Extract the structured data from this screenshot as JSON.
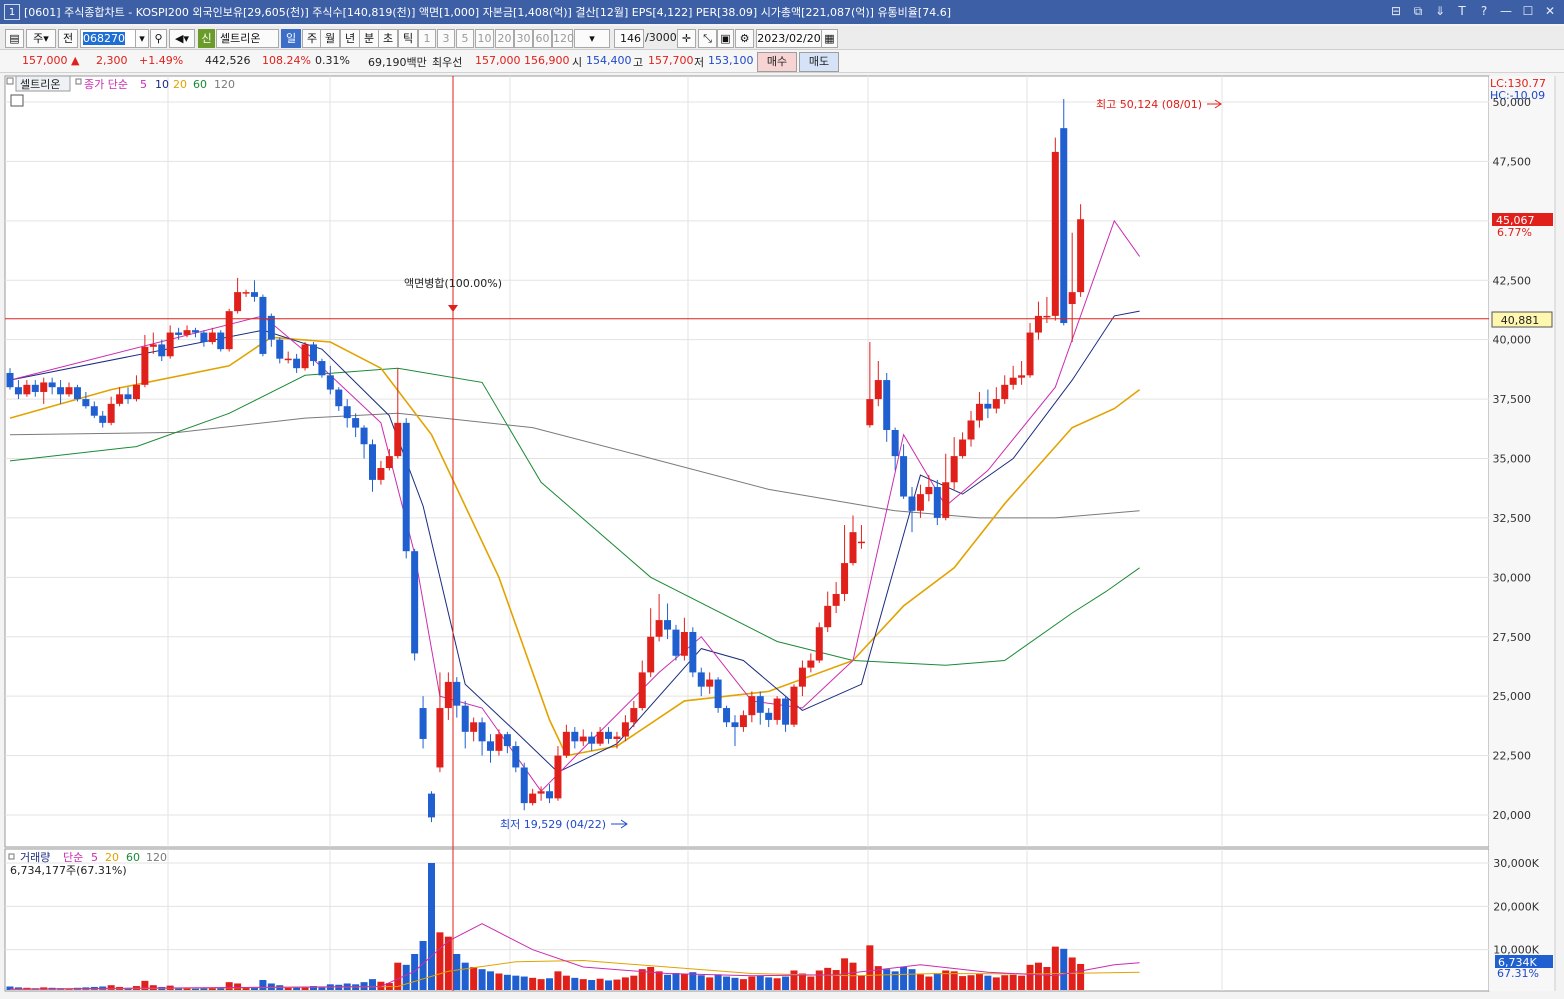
{
  "window": {
    "number": "1",
    "title": "[0601] 주식종합차트 - KOSPI200 외국인보유[29,605(천)] 주식수[140,819(천)] 액면[1,000] 자본금[1,408(억)] 결산[12월] EPS[4,122] PER[38.09] 시가총액[221,087(억)] 유통비율[74.6]",
    "buttons": [
      "⊟",
      "⧉",
      "⇓",
      "T",
      "?",
      "—",
      "☐",
      "✕"
    ]
  },
  "toolbar": {
    "market": "주",
    "prev": "전",
    "code": "068270",
    "stock_name": "셀트리온",
    "stock_badge": "신",
    "periods": [
      "일",
      "주",
      "월",
      "년",
      "분",
      "초",
      "틱"
    ],
    "selected_period": "일",
    "intervals": [
      "1",
      "3",
      "5",
      "10",
      "20",
      "30",
      "60",
      "120"
    ],
    "count": "146",
    "count_max": "/3000",
    "date": "2023/02/20"
  },
  "quote": {
    "price": "157,000",
    "arrow": "▲",
    "change": "2,300",
    "change_pct": "+1.49%",
    "volume": "442,526",
    "volume_ratio": "108.24%",
    "turnover": "0.31%",
    "amount": "69,190백만",
    "best_bid_label": "최우선",
    "best_ask": "157,000",
    "best_bid": "156,900",
    "open_label": "시",
    "open": "154,400",
    "high_label": "고",
    "high": "157,700",
    "low_label": "저",
    "low": "153,100",
    "buy_label": "매수",
    "sell_label": "매도"
  },
  "price_panel": {
    "name_tag": "셀트리온",
    "legend_title": "종가 단순",
    "ma_periods": [
      "5",
      "10",
      "20",
      "60",
      "120"
    ],
    "lc": "LC:130.77",
    "hc": "HC:-10.09",
    "y_ticks": [
      "50,000",
      "47,500",
      "45,000",
      "42,500",
      "40,000",
      "37,500",
      "35,000",
      "32,500",
      "30,000",
      "27,500",
      "25,000",
      "22,500",
      "20,000"
    ],
    "current_label": "45,067",
    "current_pct": "6.77%",
    "crosshair_label": "40,881",
    "max_annotation": "최고 50,124 (08/01)",
    "min_annotation": "최저 19,529 (04/22)",
    "event_annotation": "액면병합(100.00%)"
  },
  "volume_panel": {
    "legend_title": "거래량",
    "legend_sub": "단순",
    "ma_periods": [
      "5",
      "20",
      "60",
      "120"
    ],
    "current_text": "6,734,177주(67.31%)",
    "y_ticks": [
      "30,000K",
      "20,000K",
      "10,000K"
    ],
    "current_label": "6,734K",
    "current_pct": "67.31%"
  },
  "colors": {
    "up": "#e0201b",
    "down": "#1f5fcf",
    "ma5": "#cc2bb0",
    "ma10": "#1b2a80",
    "ma20": "#e2a300",
    "ma60": "#1a8a35",
    "ma120": "#7a7a7a"
  },
  "chart_data": {
    "type": "candlestick",
    "ylim": [
      19500,
      50500
    ],
    "volume_ylim": [
      0,
      31000
    ],
    "candles": [
      [
        38600,
        38000,
        38800,
        37900,
        1.5
      ],
      [
        38000,
        37700,
        38300,
        37500,
        1.3
      ],
      [
        37700,
        38100,
        38300,
        37600,
        1.2
      ],
      [
        38100,
        37800,
        38300,
        37600,
        1.1
      ],
      [
        37800,
        38200,
        38400,
        37300,
        1.3
      ],
      [
        38200,
        38000,
        38400,
        37700,
        1.2
      ],
      [
        38000,
        37700,
        38300,
        37300,
        1.1
      ],
      [
        37700,
        38000,
        38200,
        37600,
        1.0
      ],
      [
        38000,
        37500,
        38100,
        37400,
        1.2
      ],
      [
        37500,
        37200,
        37800,
        37100,
        1.3
      ],
      [
        37200,
        36800,
        37400,
        36700,
        1.4
      ],
      [
        36800,
        36500,
        37000,
        36300,
        1.5
      ],
      [
        36500,
        37300,
        37600,
        36400,
        1.8
      ],
      [
        37300,
        37700,
        38000,
        37200,
        1.4
      ],
      [
        37700,
        37500,
        38000,
        37300,
        1.2
      ],
      [
        37500,
        38100,
        38500,
        37400,
        1.6
      ],
      [
        38100,
        39700,
        40200,
        38000,
        2.8
      ],
      [
        39700,
        39800,
        40300,
        39400,
        1.8
      ],
      [
        39800,
        39300,
        40000,
        39100,
        1.4
      ],
      [
        39300,
        40300,
        40600,
        39200,
        1.7
      ],
      [
        40300,
        40200,
        40500,
        40000,
        1.2
      ],
      [
        40200,
        40400,
        40600,
        40100,
        1.1
      ],
      [
        40400,
        40300,
        40500,
        40100,
        1.0
      ],
      [
        40300,
        39900,
        40400,
        39700,
        1.2
      ],
      [
        39900,
        40300,
        40500,
        39800,
        1.1
      ],
      [
        40300,
        39600,
        40400,
        39500,
        1.3
      ],
      [
        39600,
        41200,
        41300,
        39500,
        2.5
      ],
      [
        41200,
        42000,
        42600,
        41100,
        2.2
      ],
      [
        42000,
        42000,
        42100,
        41800,
        1.3
      ],
      [
        42000,
        41800,
        42500,
        41600,
        1.4
      ],
      [
        41800,
        39400,
        41900,
        39300,
        3.0
      ],
      [
        41000,
        40000,
        41100,
        39700,
        2.2
      ],
      [
        40000,
        39200,
        40100,
        39000,
        1.8
      ],
      [
        39200,
        39200,
        39500,
        39000,
        1.2
      ],
      [
        39200,
        38800,
        39400,
        38600,
        1.3
      ],
      [
        38800,
        39800,
        39900,
        38700,
        1.5
      ],
      [
        39800,
        39100,
        39900,
        38900,
        1.6
      ],
      [
        39100,
        38500,
        39200,
        38400,
        1.4
      ],
      [
        38500,
        37900,
        38900,
        37700,
        2.0
      ],
      [
        37900,
        37200,
        38000,
        37000,
        1.9
      ],
      [
        37200,
        36700,
        37500,
        36300,
        2.2
      ],
      [
        36700,
        36300,
        36900,
        35900,
        2.0
      ],
      [
        36300,
        35600,
        36400,
        35000,
        2.5
      ],
      [
        35600,
        34100,
        35800,
        33600,
        3.2
      ],
      [
        34100,
        34600,
        34900,
        33900,
        2.6
      ],
      [
        34600,
        35100,
        35400,
        34500,
        2.3
      ],
      [
        35100,
        36500,
        38800,
        35000,
        7.0
      ],
      [
        36500,
        31100,
        36700,
        30800,
        6.5
      ],
      [
        31100,
        26800,
        31200,
        26500,
        9.0
      ],
      [
        24500,
        23200,
        25000,
        22800,
        12.0
      ],
      [
        20900,
        19900,
        21000,
        19700,
        30.0
      ],
      [
        22000,
        24500,
        26000,
        21800,
        14.0
      ],
      [
        24500,
        25600,
        26000,
        24000,
        13.0
      ],
      [
        25600,
        24600,
        25800,
        24100,
        9.0
      ],
      [
        24600,
        23500,
        24800,
        22800,
        7.0
      ],
      [
        23500,
        23900,
        24100,
        23100,
        6.0
      ],
      [
        23900,
        23100,
        24100,
        22500,
        5.5
      ],
      [
        23100,
        22700,
        23400,
        22200,
        5.0
      ],
      [
        22700,
        23400,
        23600,
        22500,
        4.5
      ],
      [
        23400,
        22900,
        23500,
        22600,
        4.2
      ],
      [
        22900,
        22000,
        23100,
        21800,
        4.0
      ],
      [
        22000,
        20500,
        22200,
        20200,
        3.8
      ],
      [
        20500,
        20900,
        21100,
        20400,
        3.5
      ],
      [
        20900,
        21000,
        21200,
        20600,
        3.2
      ],
      [
        21000,
        20700,
        21300,
        20500,
        3.4
      ],
      [
        20700,
        22500,
        22900,
        20600,
        5.0
      ],
      [
        22500,
        23500,
        23800,
        22400,
        4.0
      ],
      [
        23500,
        23100,
        23700,
        22800,
        3.5
      ],
      [
        23100,
        23300,
        23600,
        22900,
        3.2
      ],
      [
        23300,
        23000,
        23500,
        22700,
        3.0
      ],
      [
        23000,
        23500,
        23700,
        22900,
        3.3
      ],
      [
        23500,
        23200,
        23700,
        23000,
        2.9
      ],
      [
        23200,
        23300,
        23500,
        22800,
        3.1
      ],
      [
        23300,
        23900,
        24200,
        23100,
        3.6
      ],
      [
        23900,
        24500,
        24800,
        23700,
        4.0
      ],
      [
        24500,
        26000,
        26500,
        24400,
        5.5
      ],
      [
        26000,
        27500,
        28700,
        25800,
        6.0
      ],
      [
        27500,
        28200,
        29300,
        27300,
        5.0
      ],
      [
        28200,
        27800,
        28900,
        27400,
        4.2
      ],
      [
        27800,
        26700,
        28000,
        26500,
        4.6
      ],
      [
        26700,
        27700,
        28300,
        26500,
        4.4
      ],
      [
        27700,
        26000,
        27900,
        25800,
        4.8
      ],
      [
        26000,
        25400,
        26200,
        25000,
        4.1
      ],
      [
        25400,
        25700,
        26000,
        25100,
        3.6
      ],
      [
        25700,
        24500,
        25800,
        24300,
        4.3
      ],
      [
        24500,
        23900,
        24600,
        23700,
        3.8
      ],
      [
        23900,
        23700,
        24200,
        22900,
        3.5
      ],
      [
        23700,
        24200,
        24400,
        23500,
        3.2
      ],
      [
        24200,
        25000,
        25200,
        23900,
        3.8
      ],
      [
        25000,
        24300,
        25200,
        23800,
        4.0
      ],
      [
        24300,
        24000,
        24500,
        23700,
        3.6
      ],
      [
        24000,
        24900,
        25000,
        23800,
        3.4
      ],
      [
        24900,
        23800,
        25000,
        23500,
        3.8
      ],
      [
        23800,
        25400,
        25500,
        23700,
        5.2
      ],
      [
        25400,
        26200,
        26500,
        25000,
        4.5
      ],
      [
        26200,
        26500,
        26800,
        26000,
        3.8
      ],
      [
        26500,
        27900,
        28100,
        26400,
        5.2
      ],
      [
        27900,
        28800,
        29400,
        27700,
        5.8
      ],
      [
        28800,
        29300,
        29800,
        28500,
        5.3
      ],
      [
        29300,
        30600,
        32200,
        29000,
        8.0
      ],
      [
        30600,
        31900,
        32600,
        30500,
        7.0
      ],
      [
        31500,
        31500,
        32200,
        31200,
        4.0
      ],
      [
        36400,
        37500,
        39900,
        36300,
        11.0
      ],
      [
        37500,
        38300,
        39100,
        37200,
        6.2
      ],
      [
        38300,
        36200,
        38600,
        35700,
        5.5
      ],
      [
        36200,
        35100,
        36300,
        34500,
        5.0
      ],
      [
        35100,
        33400,
        35600,
        33300,
        6.0
      ],
      [
        33400,
        32800,
        33800,
        31900,
        5.5
      ],
      [
        32800,
        33500,
        33900,
        32500,
        4.3
      ],
      [
        33500,
        33800,
        34300,
        33200,
        3.8
      ],
      [
        33800,
        32500,
        34100,
        32200,
        4.6
      ],
      [
        32500,
        34000,
        35200,
        32400,
        5.2
      ],
      [
        34000,
        35100,
        35900,
        33700,
        5.0
      ],
      [
        35100,
        35800,
        36100,
        35000,
        3.9
      ],
      [
        35800,
        36600,
        37000,
        35500,
        4.1
      ],
      [
        36600,
        37300,
        37800,
        36300,
        4.4
      ],
      [
        37300,
        37100,
        37900,
        36700,
        4.0
      ],
      [
        37100,
        37500,
        38000,
        36900,
        3.6
      ],
      [
        37500,
        38100,
        38500,
        37300,
        4.1
      ],
      [
        38100,
        38400,
        38900,
        37900,
        4.2
      ],
      [
        38400,
        38500,
        39100,
        38100,
        4.0
      ],
      [
        38500,
        40300,
        40700,
        38400,
        6.5
      ],
      [
        40300,
        41000,
        41600,
        40000,
        7.0
      ],
      [
        41000,
        41000,
        41800,
        40700,
        6.0
      ],
      [
        41000,
        47900,
        48500,
        40800,
        10.7
      ],
      [
        48900,
        40700,
        50124,
        40600,
        10.2
      ],
      [
        41500,
        42000,
        44500,
        39900,
        8.2
      ],
      [
        42000,
        45067,
        45700,
        41800,
        6.7
      ]
    ],
    "moving_averages": {
      "ma5": [
        [
          0,
          38300
        ],
        [
          30,
          41000
        ],
        [
          35,
          39500
        ],
        [
          44,
          36500
        ],
        [
          48,
          31000
        ],
        [
          51,
          25000
        ],
        [
          56,
          24500
        ],
        [
          63,
          21000
        ],
        [
          68,
          22800
        ],
        [
          77,
          26000
        ],
        [
          82,
          27500
        ],
        [
          88,
          24800
        ],
        [
          94,
          24500
        ],
        [
          100,
          26500
        ],
        [
          106,
          36000
        ],
        [
          111,
          33000
        ],
        [
          116,
          34500
        ],
        [
          124,
          38000
        ],
        [
          131,
          45000
        ],
        [
          134,
          43500
        ]
      ],
      "ma10": [
        [
          0,
          38300
        ],
        [
          30,
          40400
        ],
        [
          37,
          39600
        ],
        [
          45,
          36800
        ],
        [
          49,
          33000
        ],
        [
          54,
          25500
        ],
        [
          60,
          23500
        ],
        [
          65,
          21800
        ],
        [
          72,
          23000
        ],
        [
          82,
          27000
        ],
        [
          87,
          26500
        ],
        [
          94,
          24400
        ],
        [
          101,
          25500
        ],
        [
          108,
          34300
        ],
        [
          113,
          33500
        ],
        [
          119,
          35000
        ],
        [
          126,
          38300
        ],
        [
          131,
          41000
        ],
        [
          134,
          41200
        ]
      ],
      "ma20": [
        [
          0,
          36700
        ],
        [
          12,
          37900
        ],
        [
          26,
          38900
        ],
        [
          31,
          40100
        ],
        [
          38,
          39900
        ],
        [
          44,
          38800
        ],
        [
          50,
          36000
        ],
        [
          58,
          30000
        ],
        [
          64,
          24000
        ],
        [
          66,
          22500
        ],
        [
          72,
          22900
        ],
        [
          80,
          24800
        ],
        [
          90,
          25200
        ],
        [
          100,
          26500
        ],
        [
          106,
          28800
        ],
        [
          112,
          30400
        ],
        [
          118,
          33100
        ],
        [
          126,
          36300
        ],
        [
          131,
          37100
        ],
        [
          134,
          37900
        ]
      ],
      "ma60": [
        [
          0,
          34900
        ],
        [
          15,
          35500
        ],
        [
          26,
          36900
        ],
        [
          35,
          38500
        ],
        [
          46,
          38800
        ],
        [
          56,
          38200
        ],
        [
          63,
          34000
        ],
        [
          76,
          30000
        ],
        [
          91,
          27300
        ],
        [
          100,
          26500
        ],
        [
          111,
          26300
        ],
        [
          118,
          26500
        ],
        [
          126,
          28500
        ],
        [
          130,
          29400
        ],
        [
          134,
          30400
        ]
      ],
      "ma120": [
        [
          0,
          36000
        ],
        [
          20,
          36100
        ],
        [
          35,
          36700
        ],
        [
          46,
          36900
        ],
        [
          62,
          36300
        ],
        [
          75,
          35100
        ],
        [
          90,
          33700
        ],
        [
          105,
          32800
        ],
        [
          115,
          32500
        ],
        [
          124,
          32500
        ],
        [
          134,
          32800
        ]
      ],
      "vma5": [
        [
          0,
          0.9
        ],
        [
          44,
          1.5
        ],
        [
          48,
          5.0
        ],
        [
          52,
          12.0
        ],
        [
          56,
          16.0
        ],
        [
          62,
          10.0
        ],
        [
          68,
          6.0
        ],
        [
          78,
          4.5
        ],
        [
          88,
          4.0
        ],
        [
          98,
          4.2
        ],
        [
          108,
          6.5
        ],
        [
          116,
          4.8
        ],
        [
          124,
          4.0
        ],
        [
          131,
          6.5
        ],
        [
          134,
          7.0
        ]
      ],
      "vma20": [
        [
          0,
          0.8
        ],
        [
          46,
          1.5
        ],
        [
          52,
          5.0
        ],
        [
          60,
          7.2
        ],
        [
          68,
          7.5
        ],
        [
          78,
          6.0
        ],
        [
          88,
          4.5
        ],
        [
          100,
          4.0
        ],
        [
          110,
          4.5
        ],
        [
          122,
          4.4
        ],
        [
          134,
          4.8
        ]
      ]
    }
  }
}
